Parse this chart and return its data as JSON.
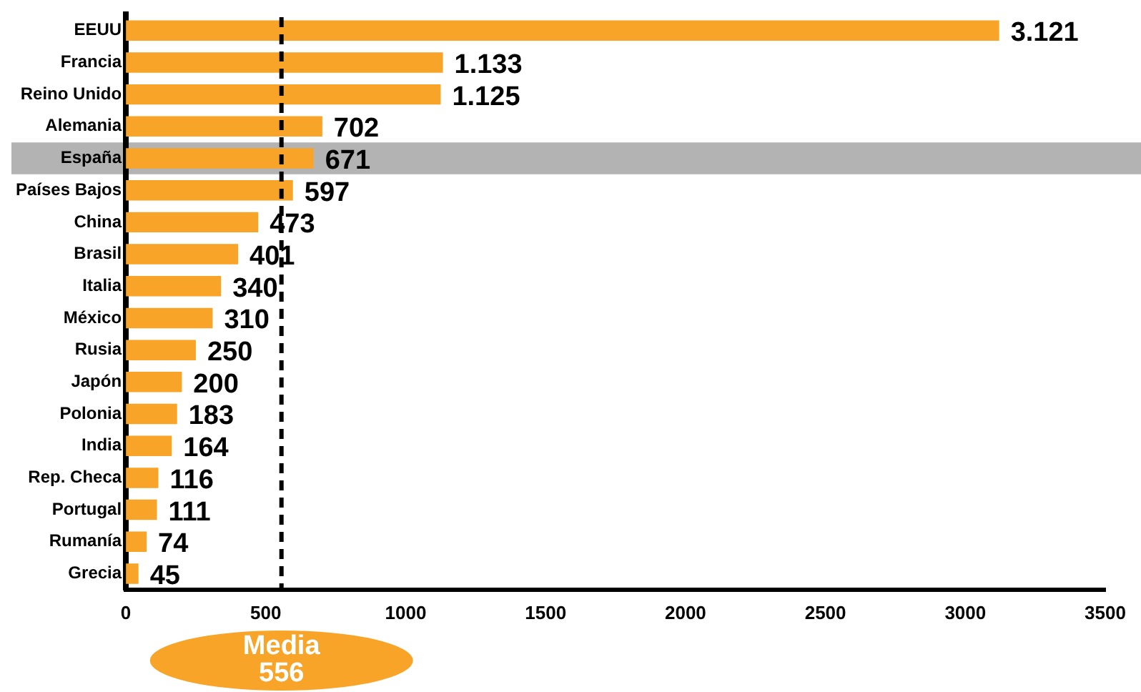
{
  "chart_data": {
    "type": "bar",
    "orientation": "horizontal",
    "categories": [
      "EEUU",
      "Francia",
      "Reino Unido",
      "Alemania",
      "España",
      "Países Bajos",
      "China",
      "Brasil",
      "Italia",
      "México",
      "Rusia",
      "Japón",
      "Polonia",
      "India",
      "Rep. Checa",
      "Portugal",
      "Rumanía",
      "Grecia"
    ],
    "values": [
      3121,
      1133,
      1125,
      702,
      671,
      597,
      473,
      401,
      340,
      310,
      250,
      200,
      183,
      164,
      116,
      111,
      74,
      45
    ],
    "value_labels": [
      "3.121",
      "1.133",
      "1.125",
      "702",
      "671",
      "597",
      "473",
      "401",
      "340",
      "310",
      "250",
      "200",
      "183",
      "164",
      "116",
      "111",
      "74",
      "45"
    ],
    "color": "#f7a428",
    "xlim": [
      0,
      3500
    ],
    "xticks": [
      0,
      500,
      1000,
      1500,
      2000,
      2500,
      3000,
      3500
    ],
    "grid": false,
    "legend": false,
    "ref_lines": [
      {
        "axis": "x",
        "value": 556,
        "label": "Media 556",
        "color": "#000000",
        "line_style": "dashed"
      }
    ],
    "bands": [
      {
        "axis": "y",
        "from": "España",
        "to": "España",
        "color": "#b3b3b3"
      }
    ]
  }
}
